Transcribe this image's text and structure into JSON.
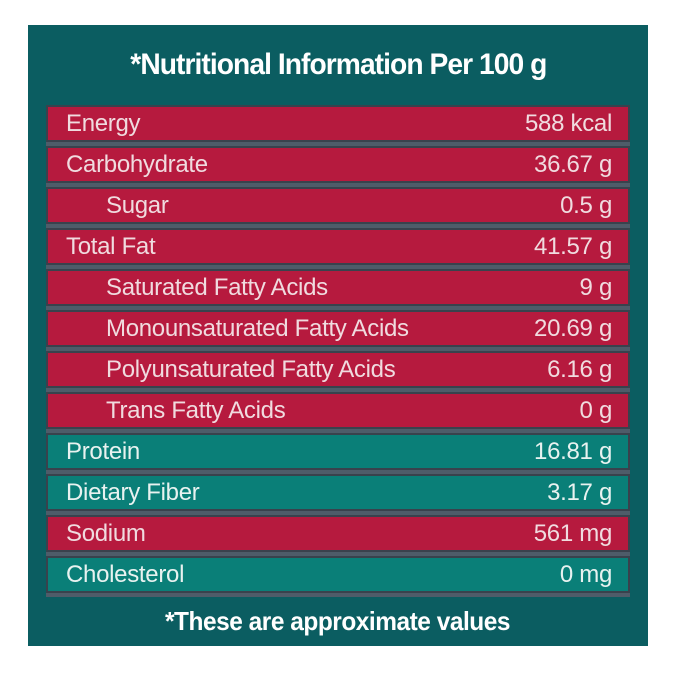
{
  "header": {
    "title": "*Nutritional Information Per 100 g"
  },
  "footer": {
    "note": "*These are approximate values"
  },
  "colors": {
    "page_background": "#ffffff",
    "panel_teal": "#0b5d61",
    "row_red": "#b61a3e",
    "row_teal": "#0a7f78",
    "row_border": "#39424d",
    "row_gap": "#4e5c69",
    "text_on_red": "#f0dbdf",
    "text_on_teal": "#e8f2f0",
    "heading_text": "#ffffff"
  },
  "table": {
    "rows": [
      {
        "label": "Energy",
        "value": "588 kcal",
        "theme": "red",
        "indent": false
      },
      {
        "label": "Carbohydrate",
        "value": "36.67 g",
        "theme": "red",
        "indent": false
      },
      {
        "label": "Sugar",
        "value": "0.5 g",
        "theme": "red",
        "indent": true
      },
      {
        "label": "Total Fat",
        "value": "41.57 g",
        "theme": "red",
        "indent": false
      },
      {
        "label": "Saturated Fatty Acids",
        "value": "9 g",
        "theme": "red",
        "indent": true
      },
      {
        "label": "Monounsaturated Fatty Acids",
        "value": "20.69 g",
        "theme": "red",
        "indent": true
      },
      {
        "label": "Polyunsaturated Fatty Acids",
        "value": "6.16 g",
        "theme": "red",
        "indent": true
      },
      {
        "label": "Trans Fatty Acids",
        "value": "0 g",
        "theme": "red",
        "indent": true
      },
      {
        "label": "Protein",
        "value": "16.81 g",
        "theme": "teal",
        "indent": false
      },
      {
        "label": "Dietary Fiber",
        "value": "3.17 g",
        "theme": "teal",
        "indent": false
      },
      {
        "label": "Sodium",
        "value": "561 mg",
        "theme": "red",
        "indent": false
      },
      {
        "label": "Cholesterol",
        "value": "0 mg",
        "theme": "teal",
        "indent": false
      }
    ]
  }
}
